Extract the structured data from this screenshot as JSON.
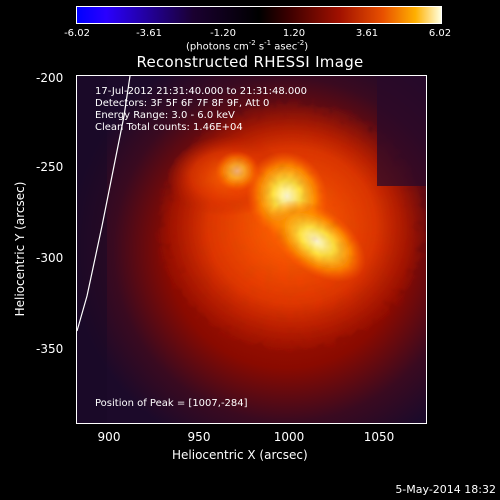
{
  "colorbar": {
    "ticks": [
      "-6.02",
      "-3.61",
      "-1.20",
      "1.20",
      "3.61",
      "6.02"
    ],
    "units_prefix": "(photons cm",
    "units_exp1": "-2",
    "units_mid1": " s",
    "units_exp2": "-1",
    "units_mid2": " asec",
    "units_exp3": "-2",
    "units_suffix": ")"
  },
  "title": "Reconstructed RHESSI Image",
  "info": {
    "time_range": "17-Jul-2012 21:31:40.000 to 21:31:48.000",
    "detectors": "Detectors: 3F 5F 6F 7F 8F 9F, Att 0",
    "energy_range": "Energy Range: 3.0 - 6.0 keV",
    "clean_counts": "Clean    Total counts: 1.46E+04",
    "peak_position": "Position of Peak = [1007,-284]"
  },
  "axes": {
    "x_label": "Heliocentric X (arcsec)",
    "y_label": "Heliocentric Y (arcsec)",
    "x_ticks": [
      "900",
      "950",
      "1000",
      "1050"
    ],
    "y_ticks": [
      "-200",
      "-250",
      "-300",
      "-350"
    ]
  },
  "date_stamp": "5-May-2014 18:32",
  "colors": {
    "background": "#000000",
    "limb_line": "#ffffff",
    "text": "#ffffff"
  }
}
